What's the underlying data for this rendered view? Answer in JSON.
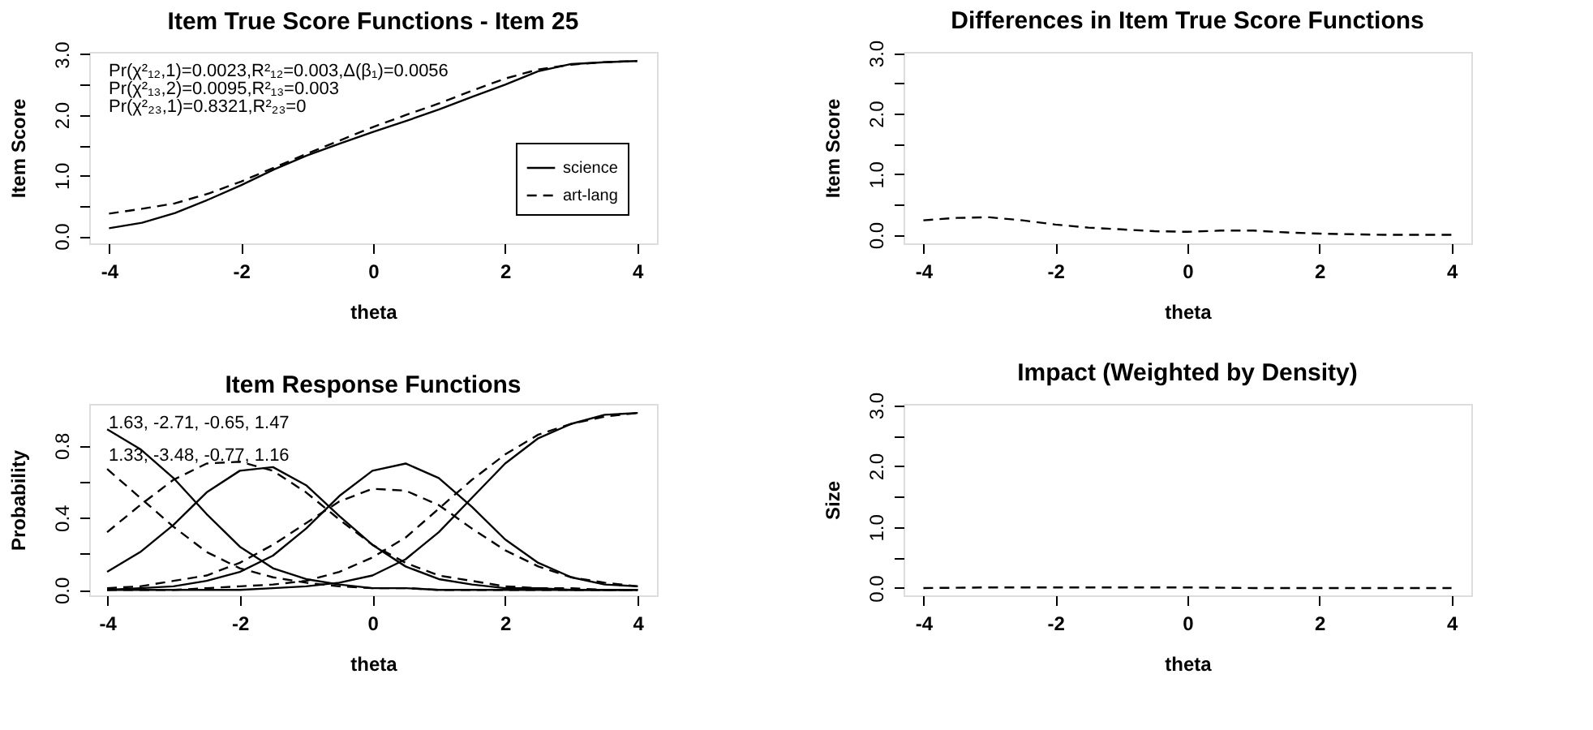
{
  "chart_data": [
    {
      "type": "line",
      "title": "Item True Score Functions - Item 25",
      "xlabel": "theta",
      "ylabel": "Item Score",
      "xlim": [
        -4.3,
        4.3
      ],
      "xticks": [
        -4,
        -2,
        0,
        2,
        4
      ],
      "ylim": [
        -0.12,
        3.04
      ],
      "yticks": [
        {
          "value": 0,
          "label": "0.0"
        },
        {
          "value": 0.5,
          "label": null
        },
        {
          "value": 1,
          "label": "1.0"
        },
        {
          "value": 1.5,
          "label": null
        },
        {
          "value": 2,
          "label": "2.0"
        },
        {
          "value": 2.5,
          "label": null
        },
        {
          "value": 3,
          "label": "3.0"
        }
      ],
      "x": [
        -4,
        -3.5,
        -3,
        -2.5,
        -2,
        -1.5,
        -1,
        -0.5,
        0,
        0.5,
        1,
        1.5,
        2,
        2.5,
        3,
        3.5,
        4
      ],
      "series": [
        {
          "name": "science",
          "color": "#000000",
          "line_style": "solid",
          "values": [
            0.13,
            0.22,
            0.38,
            0.6,
            0.84,
            1.1,
            1.33,
            1.53,
            1.72,
            1.9,
            2.09,
            2.3,
            2.5,
            2.72,
            2.84,
            2.87,
            2.89
          ]
        },
        {
          "name": "art-lang",
          "color": "#000000",
          "line_style": "dashed",
          "values": [
            0.37,
            0.45,
            0.54,
            0.7,
            0.9,
            1.13,
            1.36,
            1.58,
            1.8,
            2.0,
            2.19,
            2.4,
            2.6,
            2.75,
            2.83,
            2.87,
            2.89
          ]
        }
      ],
      "annotations": [
        "Pr(χ²₁₂,1)=0.0023,R²₁₂=0.003,Δ(β₁)=0.0056",
        "Pr(χ²₁₃,2)=0.0095,R²₁₃=0.003",
        "Pr(χ²₂₃,1)=0.8321,R²₂₃=0"
      ],
      "legend": "bottom right",
      "grid": false,
      "marker": "none"
    },
    {
      "type": "line",
      "title": "Differences in Item True Score Functions",
      "xlabel": "theta",
      "ylabel": "Item Score",
      "xlim": [
        -4.3,
        4.3
      ],
      "xticks": [
        -4,
        -2,
        0,
        2,
        4
      ],
      "ylim": [
        -0.14,
        3.02
      ],
      "yticks": [
        {
          "value": 0,
          "label": "0.0"
        },
        {
          "value": 0.5,
          "label": null
        },
        {
          "value": 1,
          "label": "1.0"
        },
        {
          "value": 1.5,
          "label": null
        },
        {
          "value": 2,
          "label": "2.0"
        },
        {
          "value": 2.5,
          "label": null
        },
        {
          "value": 3,
          "label": "3.0"
        }
      ],
      "x": [
        -4,
        -3.5,
        -3,
        -2.5,
        -2,
        -1.5,
        -1,
        -0.5,
        0,
        0.5,
        1,
        1.5,
        2,
        2.5,
        3,
        3.5,
        4
      ],
      "series": [
        {
          "color": "#000000",
          "line_style": "dashed",
          "values": [
            0.24,
            0.28,
            0.29,
            0.24,
            0.17,
            0.12,
            0.09,
            0.06,
            0.05,
            0.07,
            0.07,
            0.04,
            0.02,
            0.01,
            0.0,
            0.0,
            0.0
          ]
        }
      ],
      "legend": false,
      "grid": false,
      "marker": "none"
    },
    {
      "type": "line",
      "title": "Item Response Functions",
      "xlabel": "theta",
      "ylabel": "Probability",
      "xlim": [
        -4.27,
        4.29
      ],
      "xticks": [
        -4,
        -2,
        0,
        2,
        4
      ],
      "ylim": [
        -0.03,
        1.03
      ],
      "yticks": [
        {
          "value": 0,
          "label": "0.0"
        },
        {
          "value": 0.2,
          "label": null
        },
        {
          "value": 0.4,
          "label": "0.4"
        },
        {
          "value": 0.6,
          "label": null
        },
        {
          "value": 0.8,
          "label": "0.8"
        }
      ],
      "x": [
        -4,
        -3.5,
        -3,
        -2.5,
        -2,
        -1.5,
        -1,
        -0.5,
        0,
        0.5,
        1,
        1.5,
        2,
        2.5,
        3,
        3.5,
        4
      ],
      "series": [
        {
          "color": "#000000",
          "line_style": "solid",
          "values": [
            0.89,
            0.78,
            0.62,
            0.42,
            0.24,
            0.12,
            0.06,
            0.03,
            0.01,
            0.01,
            0,
            0,
            0,
            0,
            0,
            0,
            0
          ]
        },
        {
          "color": "#000000",
          "line_style": "solid",
          "values": [
            0.1,
            0.21,
            0.36,
            0.54,
            0.66,
            0.68,
            0.58,
            0.41,
            0.25,
            0.13,
            0.06,
            0.03,
            0.01,
            0.01,
            0,
            0,
            0
          ]
        },
        {
          "color": "#000000",
          "line_style": "solid",
          "values": [
            0,
            0.01,
            0.02,
            0.05,
            0.1,
            0.19,
            0.34,
            0.52,
            0.66,
            0.7,
            0.62,
            0.46,
            0.28,
            0.15,
            0.07,
            0.03,
            0.02
          ]
        },
        {
          "color": "#000000",
          "line_style": "solid",
          "values": [
            0,
            0,
            0,
            0,
            0,
            0.01,
            0.02,
            0.04,
            0.08,
            0.17,
            0.32,
            0.51,
            0.7,
            0.84,
            0.92,
            0.97,
            0.98
          ]
        },
        {
          "color": "#000000",
          "line_style": "dashed",
          "values": [
            0.67,
            0.51,
            0.35,
            0.21,
            0.12,
            0.07,
            0.04,
            0.02,
            0.01,
            0.01,
            0,
            0,
            0,
            0,
            0,
            0,
            0
          ]
        },
        {
          "color": "#000000",
          "line_style": "dashed",
          "values": [
            0.32,
            0.47,
            0.61,
            0.7,
            0.71,
            0.66,
            0.54,
            0.39,
            0.25,
            0.15,
            0.08,
            0.05,
            0.02,
            0.01,
            0.01,
            0,
            0
          ]
        },
        {
          "color": "#000000",
          "line_style": "dashed",
          "values": [
            0.01,
            0.02,
            0.05,
            0.08,
            0.15,
            0.25,
            0.37,
            0.49,
            0.56,
            0.55,
            0.47,
            0.34,
            0.22,
            0.13,
            0.07,
            0.04,
            0.02
          ]
        },
        {
          "color": "#000000",
          "line_style": "dashed",
          "values": [
            0,
            0,
            0,
            0.01,
            0.02,
            0.03,
            0.05,
            0.1,
            0.18,
            0.29,
            0.45,
            0.61,
            0.75,
            0.86,
            0.92,
            0.96,
            0.98
          ]
        }
      ],
      "annotations": [
        "1.63, -2.71, -0.65, 1.47",
        "1.33, -3.48, -0.77, 1.16"
      ],
      "legend": false,
      "grid": false,
      "marker": "none"
    },
    {
      "type": "line",
      "title": "Impact (Weighted by Density)",
      "xlabel": "theta",
      "ylabel": "Size",
      "xlim": [
        -4.3,
        4.3
      ],
      "xticks": [
        -4,
        -2,
        0,
        2,
        4
      ],
      "ylim": [
        -0.12,
        3.02
      ],
      "yticks": [
        {
          "value": 0,
          "label": "0.0"
        },
        {
          "value": 0.5,
          "label": null
        },
        {
          "value": 1,
          "label": "1.0"
        },
        {
          "value": 1.5,
          "label": null
        },
        {
          "value": 2,
          "label": "2.0"
        },
        {
          "value": 2.5,
          "label": null
        },
        {
          "value": 3,
          "label": "3.0"
        }
      ],
      "x": [
        -4,
        -3,
        -2,
        -1,
        0,
        1,
        2,
        3,
        4
      ],
      "series": [
        {
          "color": "#000000",
          "line_style": "dashed",
          "values": [
            0.0,
            0.01,
            0.01,
            0.01,
            0.01,
            0.0,
            0.0,
            0.0,
            0.0
          ]
        }
      ],
      "legend": false,
      "grid": false,
      "marker": "none"
    }
  ]
}
